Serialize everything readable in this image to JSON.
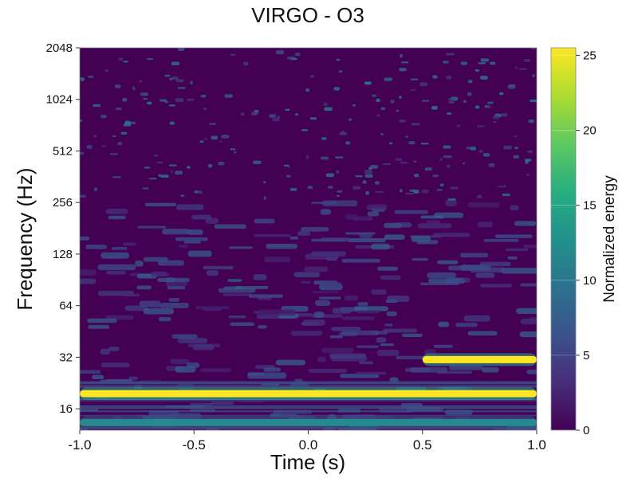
{
  "chart_data": {
    "type": "heatmap",
    "title": "VIRGO - O3",
    "xlabel": "Time (s)",
    "ylabel": "Frequency (Hz)",
    "xlim": [
      -1.0,
      1.0
    ],
    "ylim": [
      12,
      2048
    ],
    "y_scale": "log2",
    "x_ticks": [
      "-1.0",
      "-0.5",
      "0.0",
      "0.5",
      "1.0"
    ],
    "y_ticks": [
      "16",
      "32",
      "64",
      "128",
      "256",
      "512",
      "1024",
      "2048"
    ],
    "colorbar": {
      "label": "Normalized energy",
      "range": [
        0,
        25.5
      ],
      "ticks": [
        "0",
        "5",
        "10",
        "15",
        "20",
        "25"
      ],
      "colormap": "viridis"
    },
    "features": [
      {
        "t_start": -1.0,
        "t_end": 1.0,
        "freq_hz": 19.6,
        "energy": 25.5
      },
      {
        "t_start": 0.5,
        "t_end": 1.0,
        "freq_hz": 31.0,
        "energy": 25.5
      },
      {
        "t_start": -1.0,
        "t_end": 1.0,
        "freq_hz": 13.3,
        "energy": 12
      }
    ],
    "grid": false
  }
}
